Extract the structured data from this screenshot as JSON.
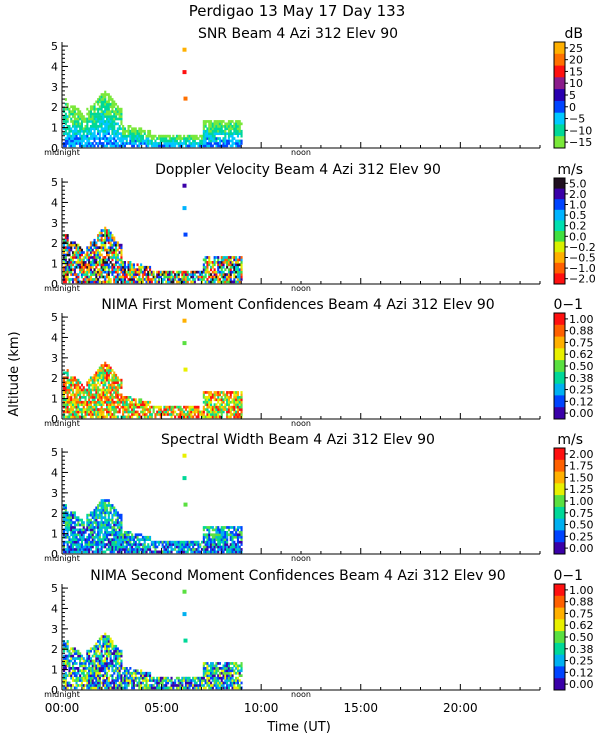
{
  "header": {
    "site_line": "Perdigao  13 May 17 Day 133"
  },
  "shared": {
    "ylabel": "Altitude (km)",
    "xlabel": "Time (UT)",
    "time_ticks": [
      "00:00",
      "05:00",
      "10:00",
      "15:00",
      "20:00"
    ],
    "midnight_label": "midnight",
    "noon_label": "noon"
  },
  "chart_data": [
    {
      "type": "heatmap",
      "title": "SNR Beam 4 Azi 312 Elev 90",
      "units": "dB",
      "xlim_hours": [
        0,
        24
      ],
      "ylim_km": [
        0,
        5.2
      ],
      "yticks": [
        0,
        1,
        2,
        3,
        4,
        5
      ],
      "data_extent_hours": [
        0,
        9.0
      ],
      "colorbar_labels": [
        "25",
        "20",
        "15",
        "10",
        "5",
        "0",
        "−5",
        "−10",
        "−15"
      ],
      "colorbar_colors": [
        "#ffb000",
        "#ff7000",
        "#ff1010",
        "#8b1c8b",
        "#2a00b0",
        "#0044ff",
        "#00c8ff",
        "#00d898",
        "#7ae83a"
      ]
    },
    {
      "type": "heatmap",
      "title": "Doppler Velocity Beam 4 Azi 312 Elev 90",
      "units": "m/s",
      "xlim_hours": [
        0,
        24
      ],
      "ylim_km": [
        0,
        5.2
      ],
      "yticks": [
        0,
        1,
        2,
        3,
        4,
        5
      ],
      "data_extent_hours": [
        0,
        9.0
      ],
      "colorbar_labels": [
        "5.0",
        "2.0",
        "1.0",
        "0.5",
        "0.2",
        "0.0",
        "−0.2",
        "−0.5",
        "−1.0",
        "−2.0"
      ],
      "colorbar_colors": [
        "#201020",
        "#3a00a8",
        "#0044ff",
        "#00b4ff",
        "#00e0b0",
        "#40e040",
        "#d8f000",
        "#ffb000",
        "#ff6000",
        "#ff1010"
      ]
    },
    {
      "type": "heatmap",
      "title": "NIMA First Moment Confidences Beam 4 Azi 312 Elev 90",
      "units": "0−1",
      "xlim_hours": [
        0,
        24
      ],
      "ylim_km": [
        0,
        5.2
      ],
      "yticks": [
        0,
        1,
        2,
        3,
        4,
        5
      ],
      "data_extent_hours": [
        0,
        9.0
      ],
      "colorbar_labels": [
        "1.00",
        "0.88",
        "0.75",
        "0.62",
        "0.50",
        "0.38",
        "0.25",
        "0.12",
        "0.00"
      ],
      "colorbar_colors": [
        "#ff1010",
        "#ff6000",
        "#ffb000",
        "#e8f000",
        "#5ae040",
        "#00d898",
        "#00b0f0",
        "#0044ff",
        "#3a00a8"
      ]
    },
    {
      "type": "heatmap",
      "title": "Spectral Width Beam 4 Azi 312 Elev 90",
      "units": "m/s",
      "xlim_hours": [
        0,
        24
      ],
      "ylim_km": [
        0,
        5.2
      ],
      "yticks": [
        0,
        1,
        2,
        3,
        4,
        5
      ],
      "data_extent_hours": [
        0,
        9.0
      ],
      "colorbar_labels": [
        "2.00",
        "1.75",
        "1.50",
        "1.25",
        "1.00",
        "0.75",
        "0.50",
        "0.25",
        "0.00"
      ],
      "colorbar_colors": [
        "#ff1010",
        "#ff6000",
        "#ffb000",
        "#e8f000",
        "#5ae040",
        "#00d898",
        "#00b0f0",
        "#0044ff",
        "#3a00a8"
      ]
    },
    {
      "type": "heatmap",
      "title": "NIMA Second Moment Confidences Beam 4 Azi 312 Elev 90",
      "units": "0−1",
      "xlim_hours": [
        0,
        24
      ],
      "ylim_km": [
        0,
        5.2
      ],
      "yticks": [
        0,
        1,
        2,
        3,
        4,
        5
      ],
      "data_extent_hours": [
        0,
        9.0
      ],
      "colorbar_labels": [
        "1.00",
        "0.88",
        "0.75",
        "0.62",
        "0.50",
        "0.38",
        "0.25",
        "0.12",
        "0.00"
      ],
      "colorbar_colors": [
        "#ff1010",
        "#ff6000",
        "#ffb000",
        "#e8f000",
        "#5ae040",
        "#00d898",
        "#00b0f0",
        "#0044ff",
        "#3a00a8"
      ]
    }
  ]
}
